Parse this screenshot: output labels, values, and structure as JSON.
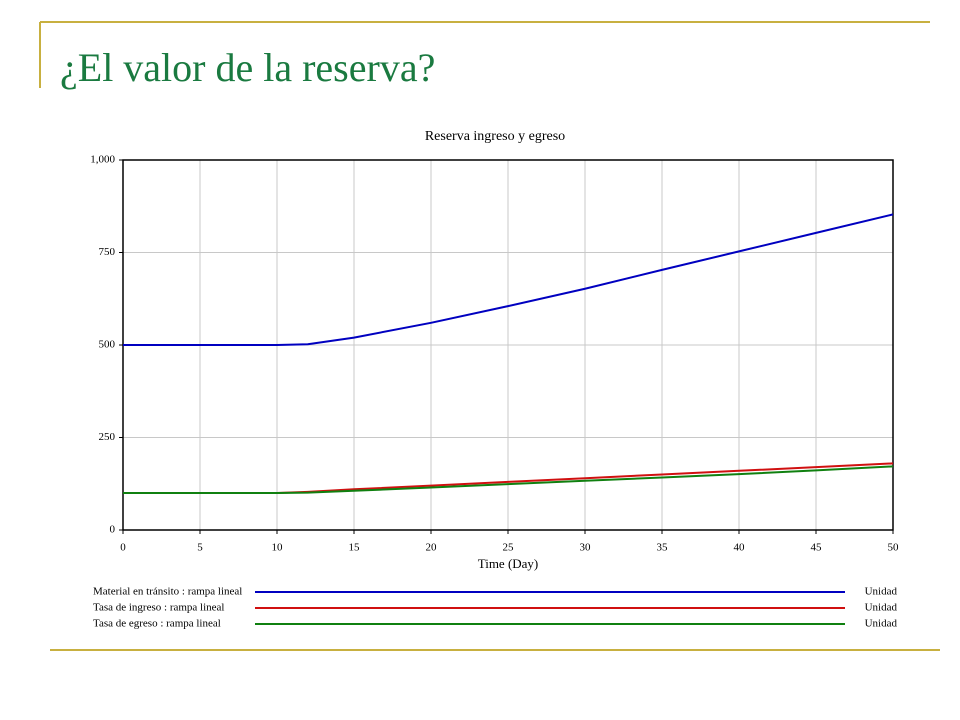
{
  "slide_title": "¿El valor de la reserva?",
  "chart_data": {
    "type": "line",
    "title": "Reserva ingreso y egreso",
    "x_label": "Time (Day)",
    "x": [
      0,
      5,
      10,
      12,
      15,
      20,
      25,
      30,
      35,
      40,
      45,
      50
    ],
    "series": [
      {
        "name": "Material en tránsito : rampa lineal",
        "unit": "Unidad",
        "color": "#0000c0",
        "values": [
          500,
          500,
          500,
          502,
          520,
          560,
          605,
          652,
          703,
          753,
          803,
          853
        ]
      },
      {
        "name": "Tasa de ingreso : rampa lineal",
        "unit": "Unidad",
        "color": "#d01010",
        "values": [
          100,
          100,
          100,
          103,
          110,
          120,
          130,
          140,
          150,
          160,
          170,
          180
        ]
      },
      {
        "name": "Tasa de egreso : rampa lineal",
        "unit": "Unidad",
        "color": "#108010",
        "values": [
          100,
          100,
          100,
          101,
          106,
          115,
          124,
          133,
          142,
          151,
          161,
          172
        ]
      }
    ],
    "xlim": [
      0,
      50
    ],
    "xticks": [
      0,
      5,
      10,
      15,
      20,
      25,
      30,
      35,
      40,
      45,
      50
    ],
    "ylim": [
      0,
      1000
    ],
    "yticks": [
      0,
      250,
      500,
      750,
      {
        "value": 1000,
        "label": "1,000"
      }
    ],
    "grid": true
  }
}
